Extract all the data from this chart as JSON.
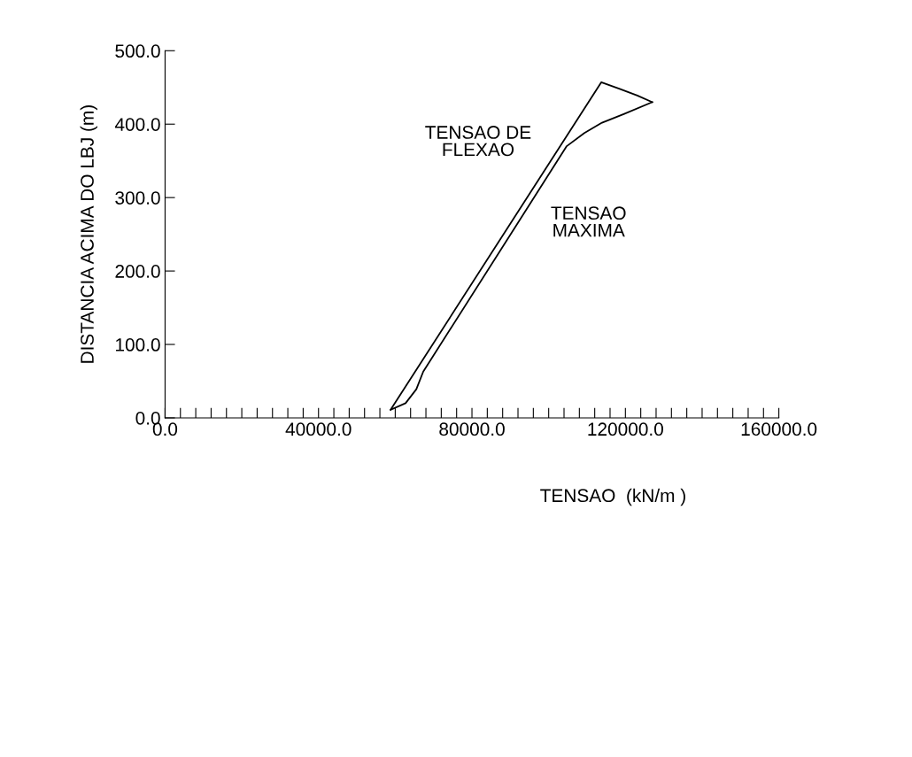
{
  "chart_data": {
    "type": "line",
    "xlabel": "TENSAO  (kN/m )",
    "ylabel": "DISTANCIA ACIMA DO LBJ (m)",
    "xlim": [
      0,
      160000
    ],
    "ylim": [
      0,
      500
    ],
    "xticks": [
      {
        "value": 0,
        "label": "0.0"
      },
      {
        "value": 40000,
        "label": "40000.0"
      },
      {
        "value": 80000,
        "label": "80000.0"
      },
      {
        "value": 120000,
        "label": "120000.0"
      },
      {
        "value": 160000,
        "label": "160000.0"
      },
      {
        "value": 4000,
        "label": null
      },
      {
        "value": 8000,
        "label": null
      },
      {
        "value": 12000,
        "label": null
      },
      {
        "value": 16000,
        "label": null
      },
      {
        "value": 20000,
        "label": null
      },
      {
        "value": 24000,
        "label": null
      },
      {
        "value": 28000,
        "label": null
      },
      {
        "value": 32000,
        "label": null
      },
      {
        "value": 36000,
        "label": null
      },
      {
        "value": 44000,
        "label": null
      },
      {
        "value": 48000,
        "label": null
      },
      {
        "value": 52000,
        "label": null
      },
      {
        "value": 56000,
        "label": null
      },
      {
        "value": 60000,
        "label": null
      },
      {
        "value": 64000,
        "label": null
      },
      {
        "value": 68000,
        "label": null
      },
      {
        "value": 72000,
        "label": null
      },
      {
        "value": 76000,
        "label": null
      },
      {
        "value": 84000,
        "label": null
      },
      {
        "value": 88000,
        "label": null
      },
      {
        "value": 92000,
        "label": null
      },
      {
        "value": 96000,
        "label": null
      },
      {
        "value": 100000,
        "label": null
      },
      {
        "value": 104000,
        "label": null
      },
      {
        "value": 108000,
        "label": null
      },
      {
        "value": 112000,
        "label": null
      },
      {
        "value": 116000,
        "label": null
      },
      {
        "value": 124000,
        "label": null
      },
      {
        "value": 128000,
        "label": null
      },
      {
        "value": 132000,
        "label": null
      },
      {
        "value": 136000,
        "label": null
      },
      {
        "value": 140000,
        "label": null
      },
      {
        "value": 144000,
        "label": null
      },
      {
        "value": 148000,
        "label": null
      },
      {
        "value": 152000,
        "label": null
      },
      {
        "value": 156000,
        "label": null
      }
    ],
    "yticks": [
      {
        "value": 0,
        "label": "0.0"
      },
      {
        "value": 100,
        "label": "100.0"
      },
      {
        "value": 200,
        "label": "200.0"
      },
      {
        "value": 300,
        "label": "300.0"
      },
      {
        "value": 400,
        "label": "400.0"
      },
      {
        "value": 500,
        "label": "500.0"
      }
    ],
    "grid": false,
    "legend": false,
    "marker": "none",
    "line_style": "solid",
    "series": [
      {
        "name": "TENSAO DE\nFLEXAO",
        "color": "#000000",
        "x": [
          58800,
          113700,
          118500,
          123100,
          127000
        ],
        "values": [
          11,
          457,
          448,
          439,
          430
        ]
      },
      {
        "name": "TENSAO\nMAXIMA",
        "color": "#000000",
        "x": [
          58800,
          62700,
          65500,
          67300,
          104700,
          109300,
          113900,
          119700,
          127000
        ],
        "values": [
          11,
          20,
          39,
          63,
          370,
          388,
          402,
          414,
          430
        ]
      }
    ]
  }
}
